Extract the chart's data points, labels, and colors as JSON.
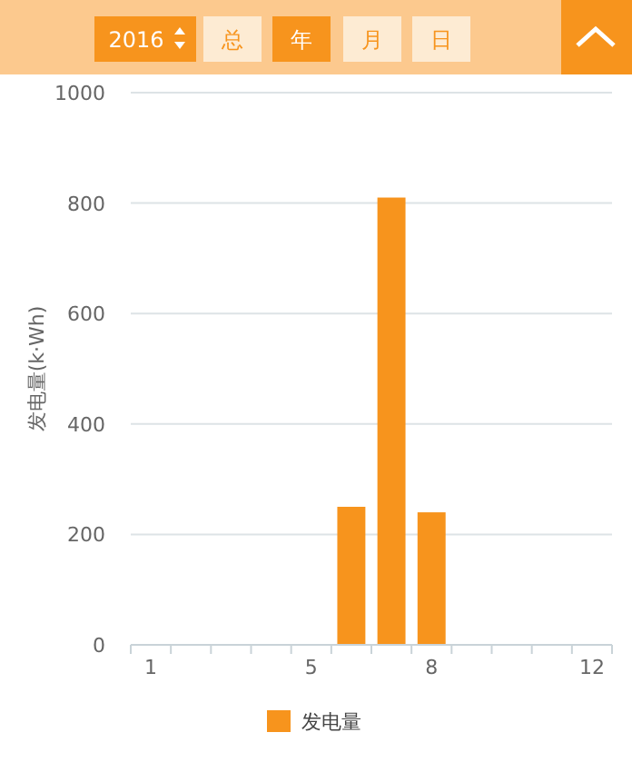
{
  "chart_data": {
    "type": "bar",
    "ylabel": "发电量(k·Wh)",
    "categories": [
      "1",
      null,
      null,
      null,
      "5",
      null,
      null,
      "8",
      null,
      null,
      null,
      "12"
    ],
    "series": [
      {
        "name": "发电量",
        "color": "#f7941d",
        "values": [
          0,
          0,
          0,
          0,
          0,
          250,
          810,
          240,
          0,
          0,
          0,
          0
        ]
      }
    ],
    "ylim": [
      0,
      1000
    ],
    "yticks": [
      0,
      200,
      400,
      600,
      800,
      1000
    ],
    "grid": "y",
    "legend": "bottom",
    "annotations": [
      "2016",
      "总",
      "年",
      "月",
      "日"
    ]
  }
}
